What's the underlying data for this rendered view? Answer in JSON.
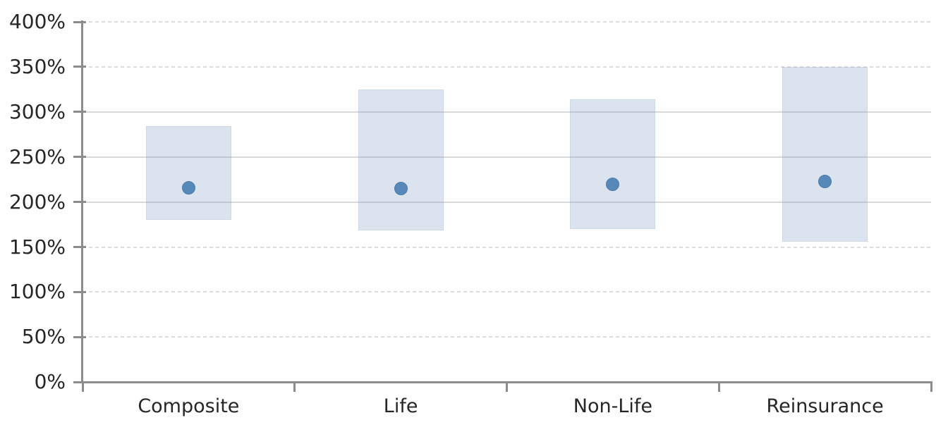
{
  "chart_data": {
    "type": "bar",
    "subtype": "floating-range-bars-with-point-markers",
    "title": "",
    "xlabel": "",
    "ylabel": "",
    "categories": [
      "Composite",
      "Life",
      "Non-Life",
      "Reinsurance"
    ],
    "series": [
      {
        "name": "range_low",
        "values": [
          180,
          168,
          170,
          156
        ]
      },
      {
        "name": "range_high",
        "values": [
          284,
          325,
          314,
          350
        ]
      },
      {
        "name": "point",
        "values": [
          216,
          215,
          220,
          223
        ]
      }
    ],
    "ylim": [
      0,
      400
    ],
    "ytick_step": 50,
    "ytick_labels": [
      "400%",
      "350%",
      "300%",
      "250%",
      "200%",
      "150%",
      "100%",
      "50%",
      "0%"
    ],
    "solid_gridlines_at": [
      200,
      250,
      300
    ],
    "dashed_gridlines_at": [
      50,
      100,
      150,
      350,
      400
    ],
    "grid": "on",
    "legend": "none"
  },
  "colors": {
    "bar_fill": "#dbe4ee",
    "bar_border": "#c2d1e2",
    "marker_fill": "#5689ba",
    "marker_border": "#4c7ca9",
    "gridline": "#d9d9d9",
    "axis": "#8c8c8c",
    "label_text": "#262626",
    "background": "#ffffff"
  }
}
